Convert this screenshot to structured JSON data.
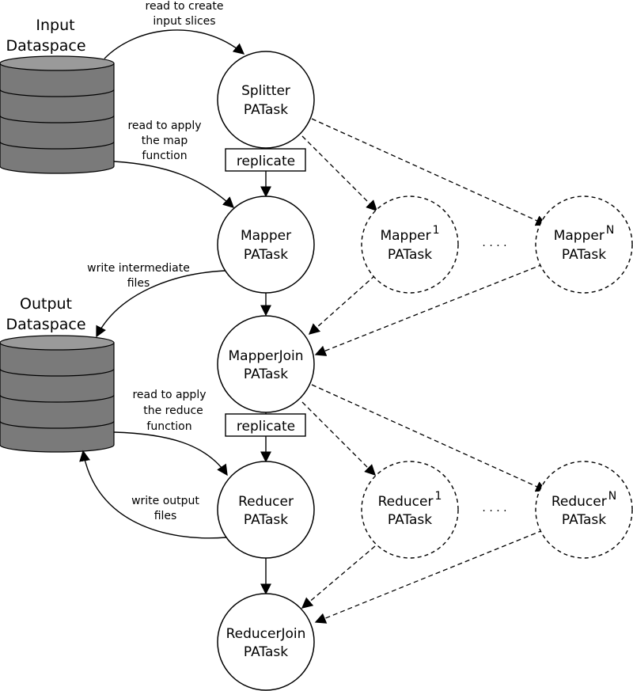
{
  "datastores": {
    "input": {
      "line1": "Input",
      "line2": "Dataspace"
    },
    "output": {
      "line1": "Output",
      "line2": "Dataspace"
    }
  },
  "tasks": {
    "splitter": {
      "line1": "Splitter",
      "line2": "PATask"
    },
    "mapper": {
      "line1": "Mapper",
      "line2": "PATask"
    },
    "mapper_1": {
      "line1": "Mapper",
      "sup": "1",
      "line2": "PATask"
    },
    "mapper_n": {
      "line1": "Mapper",
      "sup": "N",
      "line2": "PATask"
    },
    "mapper_join": {
      "line1": "MapperJoin",
      "line2": "PATask"
    },
    "reducer": {
      "line1": "Reducer",
      "line2": "PATask"
    },
    "reducer_1": {
      "line1": "Reducer",
      "sup": "1",
      "line2": "PATask"
    },
    "reducer_n": {
      "line1": "Reducer",
      "sup": "N",
      "line2": "PATask"
    },
    "reducer_join": {
      "line1": "ReducerJoin",
      "line2": "PATask"
    }
  },
  "replicate_labels": {
    "top": "replicate",
    "bottom": "replicate"
  },
  "ellipsis": {
    "mapper_row": ". . . .",
    "reducer_row": ". . . ."
  },
  "edges": {
    "input_to_splitter": {
      "line1": "read to create",
      "line2": "input slices"
    },
    "input_to_mapper": {
      "line1": "read to apply",
      "line2": "the map",
      "line3": "function"
    },
    "mapper_to_output": {
      "line1": "write intermediate",
      "line2": "files"
    },
    "output_to_reducer": {
      "line1": "read to apply",
      "line2": "the reduce",
      "line3": "function"
    },
    "reducer_to_output": {
      "line1": "write output",
      "line2": "files"
    }
  }
}
